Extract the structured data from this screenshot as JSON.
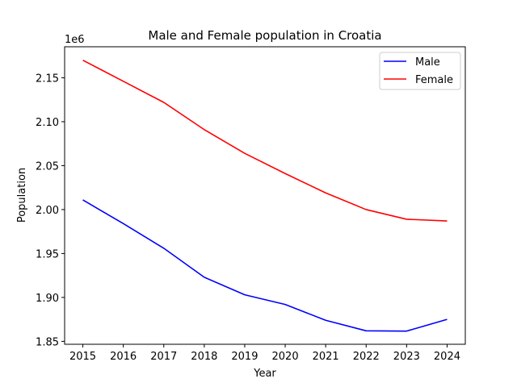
{
  "chart_data": {
    "type": "line",
    "title": "Male and Female population in Croatia",
    "xlabel": "Year",
    "ylabel": "Population",
    "y_offset_label": "1e6",
    "x": [
      2015,
      2016,
      2017,
      2018,
      2019,
      2020,
      2021,
      2022,
      2023,
      2024
    ],
    "x_tick_labels": [
      "2015",
      "2016",
      "2017",
      "2018",
      "2019",
      "2020",
      "2021",
      "2022",
      "2023",
      "2024"
    ],
    "y_ticks": [
      1.85,
      1.9,
      1.95,
      2.0,
      2.05,
      2.1,
      2.15
    ],
    "y_tick_labels": [
      "1.85",
      "1.90",
      "1.95",
      "2.00",
      "2.05",
      "2.10",
      "2.15"
    ],
    "ylim": [
      1.8467,
      2.1853
    ],
    "xlim": [
      2014.55,
      2024.45
    ],
    "grid": false,
    "legend_position": "top-right",
    "series": [
      {
        "name": "Male",
        "color": "#0000ff",
        "values": [
          2.011,
          1.984,
          1.956,
          1.923,
          1.903,
          1.892,
          1.874,
          1.862,
          1.8617,
          1.875
        ]
      },
      {
        "name": "Female",
        "color": "#ff0000",
        "values": [
          2.17,
          2.146,
          2.122,
          2.091,
          2.064,
          2.041,
          2.019,
          2.0,
          1.989,
          1.987
        ]
      }
    ]
  }
}
